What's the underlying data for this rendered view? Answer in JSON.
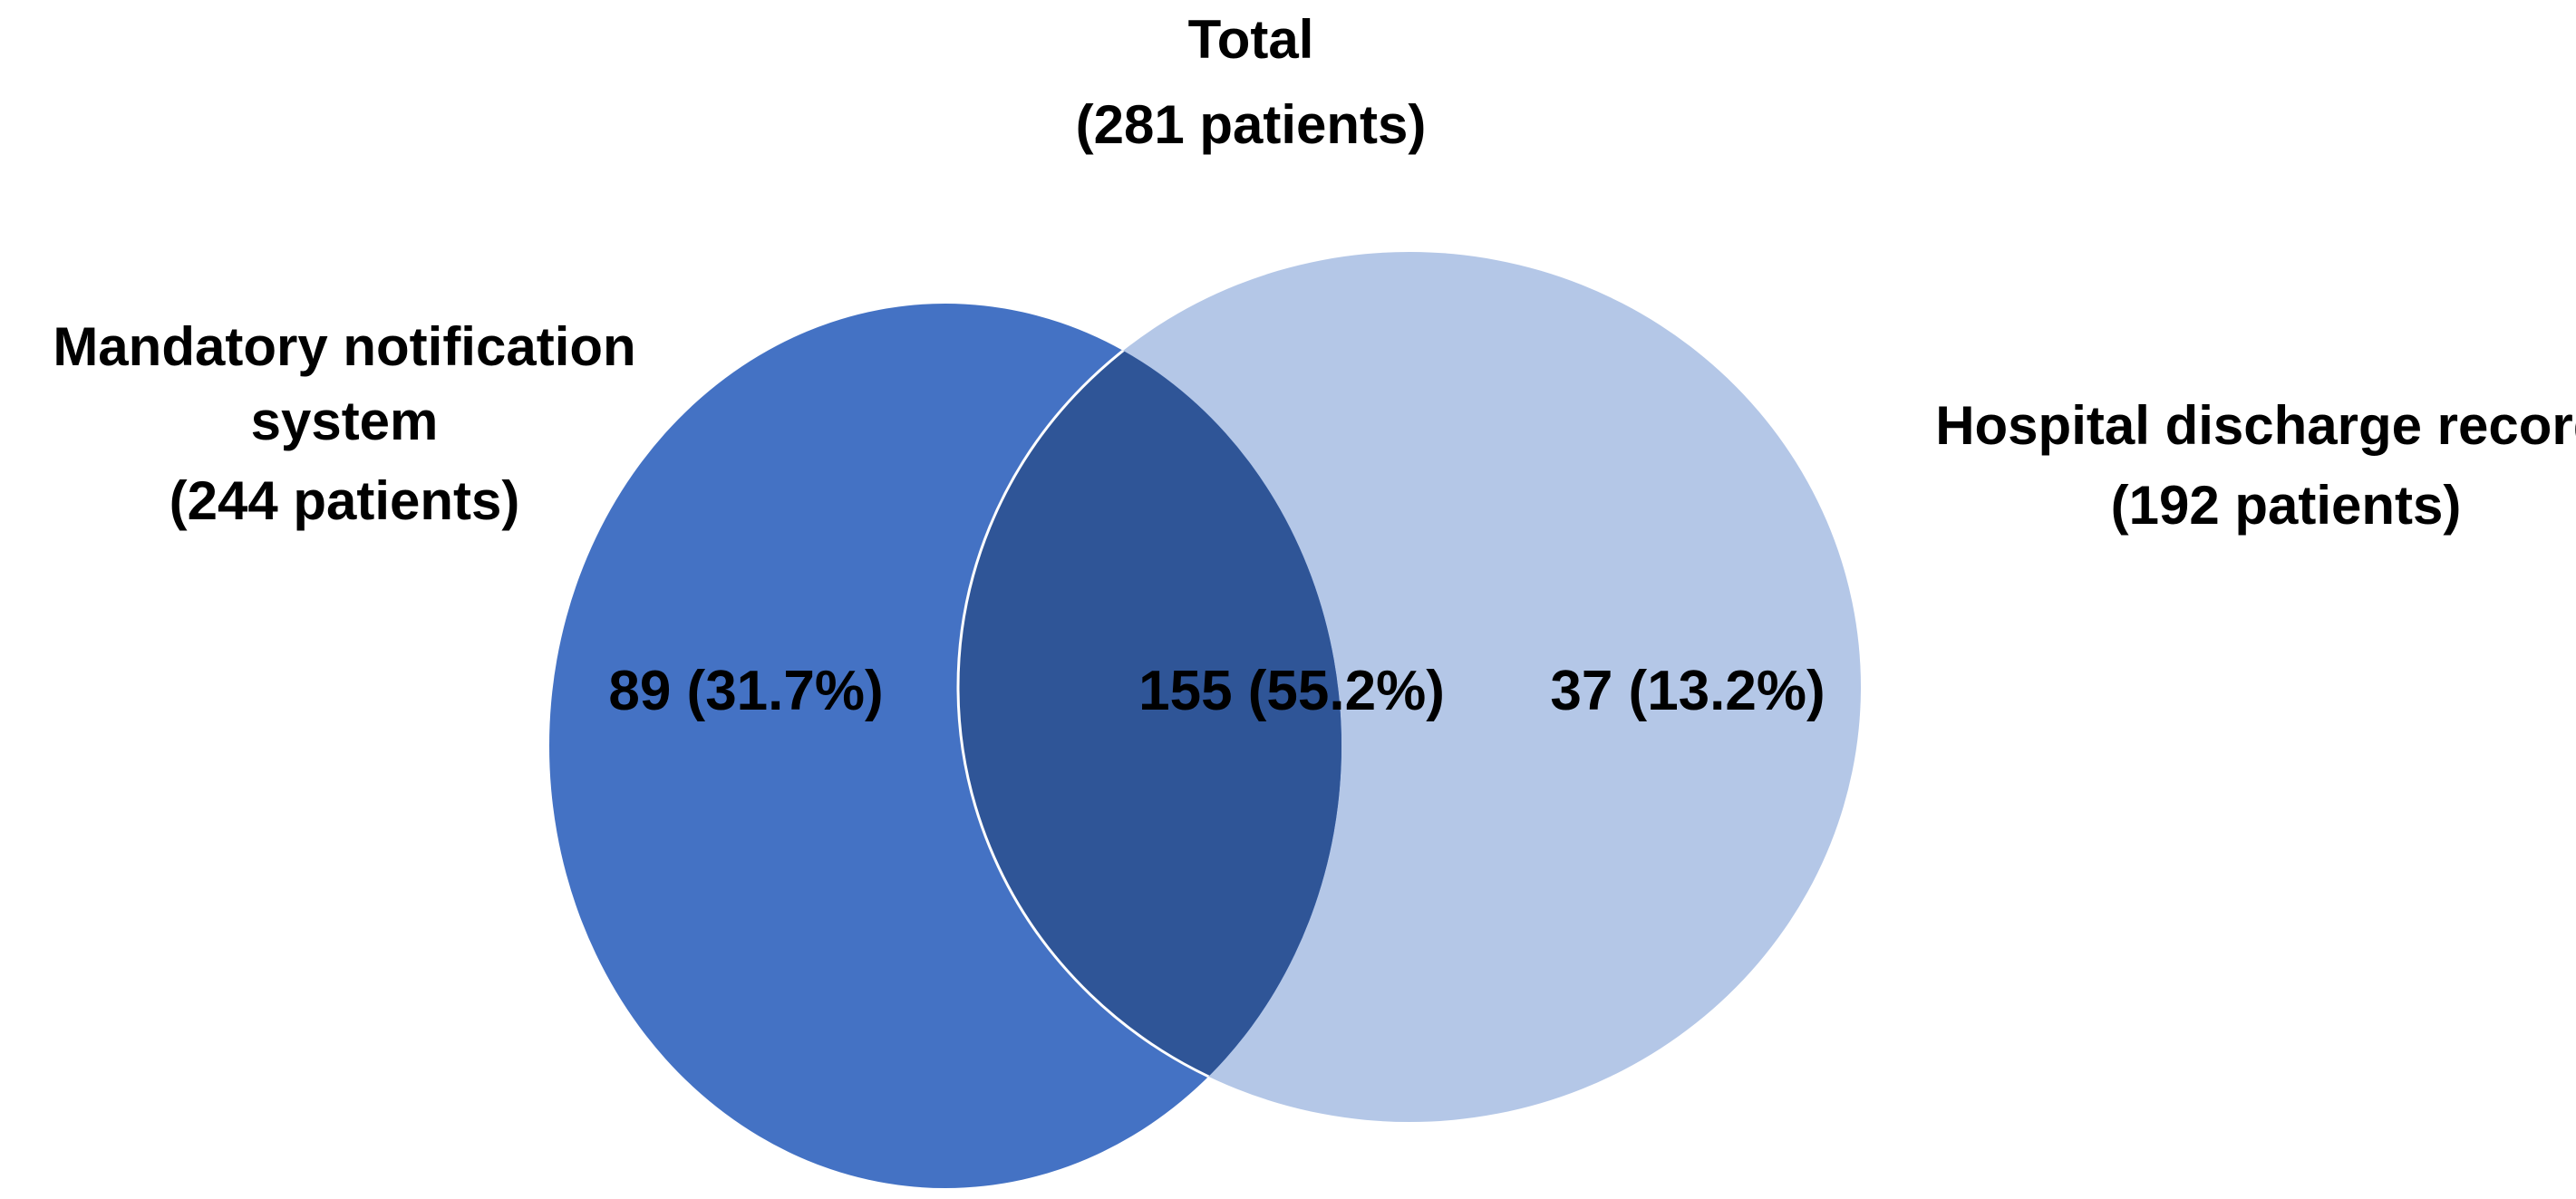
{
  "total": {
    "title": "Total",
    "count": "(281 patients)"
  },
  "sets": [
    {
      "id": "mandatory",
      "lines": [
        "Mandatory notification",
        "system",
        "(244 patients)"
      ],
      "color": "#4472C4"
    },
    {
      "id": "hospital",
      "lines": [
        "Hospital discharge records",
        "(192 patients)"
      ],
      "color": "#B4C7E7"
    }
  ],
  "regions": {
    "mandatory_only": "89 (31.7%)",
    "overlap": "155 (55.2%)",
    "hospital_only": "37 (13.2%)"
  },
  "colors": {
    "overlap": "#2F5597",
    "outline": "#ffffff"
  }
}
